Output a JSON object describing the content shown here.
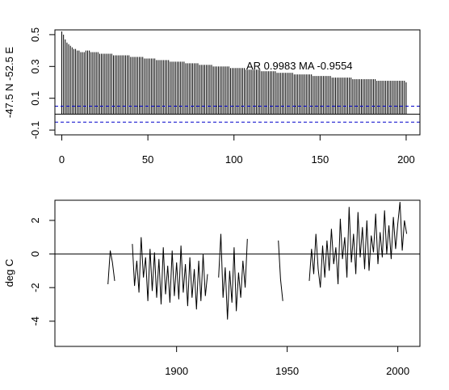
{
  "chart_data": [
    {
      "type": "bar",
      "ylabel": "-47.5 N -52.5 E",
      "annotation": "AR 0.9983 MA -0.9554",
      "xlim": [
        -4,
        208
      ],
      "ylim": [
        -0.13,
        0.53
      ],
      "xticks": [
        0,
        50,
        100,
        150,
        200
      ],
      "yticks": [
        -0.1,
        0.1,
        0.3,
        0.5
      ],
      "ytick_labels": [
        "-0.1",
        "0.1",
        "0.3",
        "0.5"
      ],
      "lag_start": 0,
      "lag_end": 200,
      "acf_values": [
        0.52,
        0.5,
        0.47,
        0.45,
        0.44,
        0.43,
        0.42,
        0.41,
        0.41,
        0.4,
        0.4,
        0.39,
        0.39,
        0.39,
        0.4,
        0.4,
        0.4,
        0.39,
        0.39,
        0.39,
        0.39,
        0.39,
        0.38,
        0.38,
        0.38,
        0.38,
        0.38,
        0.38,
        0.38,
        0.38,
        0.37,
        0.37,
        0.37,
        0.37,
        0.37,
        0.37,
        0.37,
        0.37,
        0.37,
        0.37,
        0.36,
        0.36,
        0.36,
        0.36,
        0.36,
        0.36,
        0.36,
        0.36,
        0.35,
        0.35,
        0.35,
        0.35,
        0.35,
        0.35,
        0.35,
        0.34,
        0.34,
        0.34,
        0.34,
        0.34,
        0.34,
        0.34,
        0.34,
        0.33,
        0.33,
        0.33,
        0.33,
        0.33,
        0.33,
        0.33,
        0.33,
        0.33,
        0.32,
        0.32,
        0.32,
        0.32,
        0.32,
        0.32,
        0.32,
        0.32,
        0.31,
        0.31,
        0.31,
        0.31,
        0.31,
        0.31,
        0.31,
        0.31,
        0.3,
        0.3,
        0.3,
        0.3,
        0.3,
        0.3,
        0.3,
        0.3,
        0.3,
        0.3,
        0.29,
        0.29,
        0.29,
        0.29,
        0.29,
        0.29,
        0.29,
        0.29,
        0.29,
        0.28,
        0.28,
        0.28,
        0.28,
        0.28,
        0.28,
        0.28,
        0.28,
        0.28,
        0.27,
        0.27,
        0.27,
        0.27,
        0.27,
        0.27,
        0.27,
        0.27,
        0.27,
        0.26,
        0.26,
        0.26,
        0.26,
        0.26,
        0.26,
        0.26,
        0.26,
        0.26,
        0.26,
        0.25,
        0.25,
        0.25,
        0.25,
        0.25,
        0.25,
        0.25,
        0.25,
        0.25,
        0.25,
        0.25,
        0.24,
        0.24,
        0.24,
        0.24,
        0.24,
        0.24,
        0.24,
        0.24,
        0.24,
        0.24,
        0.24,
        0.23,
        0.23,
        0.23,
        0.23,
        0.23,
        0.23,
        0.23,
        0.23,
        0.23,
        0.23,
        0.23,
        0.23,
        0.22,
        0.22,
        0.22,
        0.22,
        0.22,
        0.22,
        0.22,
        0.22,
        0.22,
        0.22,
        0.22,
        0.22,
        0.22,
        0.22,
        0.21,
        0.21,
        0.21,
        0.21,
        0.21,
        0.21,
        0.21,
        0.21,
        0.21,
        0.21,
        0.21,
        0.21,
        0.21,
        0.21,
        0.21,
        0.21,
        0.21,
        0.2
      ],
      "confidence_bounds": [
        0.05,
        -0.05
      ],
      "confidence_color": "#0000cc"
    },
    {
      "type": "line",
      "ylabel": "deg C",
      "xlim": [
        1845,
        2010
      ],
      "ylim": [
        -5.5,
        3.2
      ],
      "xticks": [
        1900,
        1950,
        2000
      ],
      "yticks": [
        -4,
        -2,
        0,
        2
      ],
      "zero_line": true,
      "segments": [
        {
          "x": [
            1869,
            1870,
            1871,
            1872
          ],
          "y": [
            -1.8,
            0.2,
            -0.5,
            -1.6
          ]
        },
        {
          "x": [
            1880,
            1881,
            1882,
            1883,
            1884,
            1885,
            1886,
            1887,
            1888,
            1889,
            1890,
            1891,
            1892,
            1893,
            1894,
            1895,
            1896,
            1897,
            1898,
            1899,
            1900,
            1901,
            1902,
            1903,
            1904,
            1905,
            1906,
            1907,
            1908,
            1909,
            1910,
            1911,
            1912,
            1913,
            1914
          ],
          "y": [
            0.6,
            -1.9,
            -0.4,
            -2.3,
            1.0,
            -1.4,
            -0.2,
            -2.8,
            0.3,
            -2.2,
            0.1,
            -2.6,
            -0.3,
            -3.0,
            0.4,
            -2.4,
            -0.7,
            -2.9,
            0.2,
            -2.5,
            -0.5,
            -2.7,
            0.5,
            -2.3,
            -0.6,
            -3.1,
            -0.2,
            -2.6,
            -0.9,
            -3.3,
            -0.4,
            -2.8,
            0.0,
            -2.5,
            -1.2
          ]
        },
        {
          "x": [
            1919,
            1920,
            1921,
            1922,
            1923,
            1924,
            1925,
            1926,
            1927,
            1928,
            1929,
            1930,
            1931,
            1932
          ],
          "y": [
            -1.4,
            1.2,
            -2.6,
            -0.8,
            -3.9,
            -1.0,
            -2.9,
            0.4,
            -3.4,
            -1.1,
            -2.6,
            -0.4,
            -2.0,
            0.9
          ]
        },
        {
          "x": [
            1946,
            1947,
            1948
          ],
          "y": [
            0.8,
            -1.5,
            -2.8
          ]
        },
        {
          "x": [
            1960,
            1961,
            1962,
            1963,
            1964,
            1965,
            1966,
            1967,
            1968,
            1969,
            1970,
            1971,
            1972,
            1973,
            1974,
            1975,
            1976,
            1977,
            1978,
            1979,
            1980,
            1981,
            1982,
            1983,
            1984,
            1985,
            1986,
            1987,
            1988,
            1989,
            1990,
            1991,
            1992,
            1993,
            1994,
            1995,
            1996,
            1997,
            1998,
            1999,
            2000,
            2001,
            2002,
            2003,
            2004
          ],
          "y": [
            -1.6,
            0.3,
            -1.2,
            1.2,
            -0.9,
            -2.0,
            0.5,
            -1.4,
            0.8,
            -1.0,
            1.5,
            -0.6,
            0.4,
            -1.8,
            2.1,
            -0.3,
            1.0,
            -1.4,
            2.8,
            -0.5,
            1.2,
            -1.2,
            2.5,
            -0.2,
            1.6,
            -0.9,
            2.0,
            -1.0,
            1.1,
            0.1,
            2.4,
            -0.6,
            1.3,
            -0.2,
            2.6,
            0.0,
            1.7,
            -0.3,
            2.2,
            0.3,
            1.8,
            3.1,
            0.2,
            2.0,
            1.2
          ]
        }
      ]
    }
  ]
}
